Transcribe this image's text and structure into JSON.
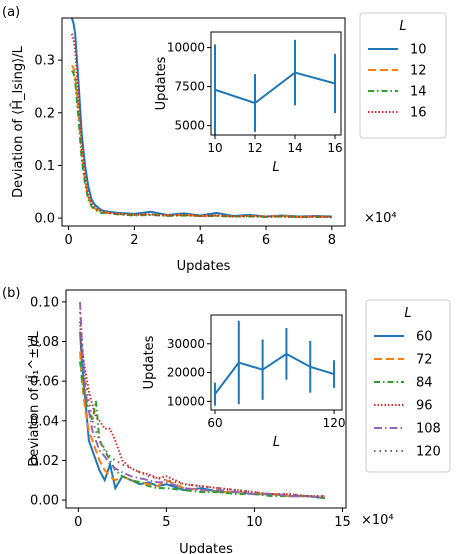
{
  "chart_data": [
    {
      "type": "line",
      "panel_label": "(a)",
      "xlabel": "Updates",
      "ylabel": "Deviation of ⟨Ĥ_Ising⟩/L",
      "x_multiplier": "×10⁴",
      "xlim": [
        -0.2,
        8.4
      ],
      "ylim": [
        -0.015,
        0.38
      ],
      "xticks": [
        0,
        2,
        4,
        6,
        8
      ],
      "yticks": [
        0.0,
        0.1,
        0.2,
        0.3
      ],
      "legend": {
        "title": "L",
        "placement": "outside-right"
      },
      "series": [
        {
          "name": "10",
          "color": "#1f77b4",
          "dash": "solid",
          "x": [
            0.1,
            0.15,
            0.2,
            0.3,
            0.4,
            0.5,
            0.6,
            0.7,
            0.8,
            1.0,
            1.2,
            1.5,
            2.0,
            2.5,
            3.0,
            3.5,
            4.0,
            4.5,
            5.0,
            5.5,
            6.0,
            6.5,
            7.0,
            7.5,
            8.0
          ],
          "y": [
            0.38,
            0.37,
            0.35,
            0.26,
            0.16,
            0.1,
            0.06,
            0.035,
            0.025,
            0.015,
            0.012,
            0.01,
            0.008,
            0.012,
            0.006,
            0.009,
            0.005,
            0.01,
            0.004,
            0.006,
            0.003,
            0.005,
            0.003,
            0.004,
            0.003
          ]
        },
        {
          "name": "12",
          "color": "#ff7f0e",
          "dash": "8,4",
          "x": [
            0.1,
            0.15,
            0.2,
            0.3,
            0.4,
            0.5,
            0.6,
            0.7,
            0.8,
            1.0,
            1.2,
            1.5,
            2.0,
            2.5,
            3.0,
            3.5,
            4.0,
            4.5,
            5.0,
            5.5,
            6.0,
            6.5,
            7.0,
            7.5,
            8.0
          ],
          "y": [
            0.29,
            0.285,
            0.27,
            0.2,
            0.12,
            0.07,
            0.04,
            0.025,
            0.018,
            0.012,
            0.01,
            0.008,
            0.006,
            0.007,
            0.005,
            0.006,
            0.004,
            0.005,
            0.003,
            0.004,
            0.003,
            0.004,
            0.002,
            0.003,
            0.002
          ]
        },
        {
          "name": "14",
          "color": "#2ca02c",
          "dash": "6,3,1.5,3",
          "x": [
            0.1,
            0.15,
            0.2,
            0.3,
            0.4,
            0.5,
            0.6,
            0.7,
            0.8,
            1.0,
            1.2,
            1.5,
            2.0,
            2.5,
            3.0,
            3.5,
            4.0,
            4.5,
            5.0,
            5.5,
            6.0,
            6.5,
            7.0,
            7.5,
            8.0
          ],
          "y": [
            0.28,
            0.275,
            0.26,
            0.19,
            0.11,
            0.065,
            0.035,
            0.022,
            0.015,
            0.01,
            0.009,
            0.007,
            0.005,
            0.006,
            0.004,
            0.005,
            0.004,
            0.004,
            0.003,
            0.003,
            0.002,
            0.003,
            0.002,
            0.002,
            0.002
          ]
        },
        {
          "name": "16",
          "color": "#d62728",
          "dash": "1.5,2",
          "x": [
            0.1,
            0.15,
            0.2,
            0.3,
            0.4,
            0.5,
            0.6,
            0.7,
            0.8,
            1.0,
            1.2,
            1.5,
            2.0,
            2.5,
            3.0,
            3.5,
            4.0,
            4.5,
            5.0,
            5.5,
            6.0,
            6.5,
            7.0,
            7.5,
            8.0
          ],
          "y": [
            0.35,
            0.34,
            0.32,
            0.23,
            0.14,
            0.08,
            0.045,
            0.028,
            0.02,
            0.013,
            0.01,
            0.008,
            0.006,
            0.007,
            0.005,
            0.006,
            0.004,
            0.005,
            0.003,
            0.004,
            0.003,
            0.003,
            0.002,
            0.003,
            0.002
          ]
        }
      ],
      "inset": {
        "type": "line-errorbar",
        "xlabel": "L",
        "ylabel": "Updates",
        "xlim": [
          9.8,
          16.3
        ],
        "ylim": [
          4400,
          11000
        ],
        "xticks": [
          10,
          12,
          14,
          16
        ],
        "yticks": [
          5000,
          7500,
          10000
        ],
        "color": "#1f77b4",
        "x": [
          10,
          12,
          14,
          16
        ],
        "y": [
          7300,
          6450,
          8400,
          7700
        ],
        "err": [
          2900,
          1850,
          2100,
          1900
        ]
      }
    },
    {
      "type": "line",
      "panel_label": "(b)",
      "xlabel": "Updates",
      "ylabel": "Deviation of ⟨Î₁^±⟩/L",
      "x_multiplier": "×10⁴",
      "xlim": [
        -0.7,
        15.2
      ],
      "ylim": [
        -0.004,
        0.106
      ],
      "xticks": [
        0,
        5,
        10,
        15
      ],
      "yticks": [
        0.0,
        0.02,
        0.04,
        0.06,
        0.08,
        0.1
      ],
      "legend": {
        "title": "L",
        "placement": "outside-right"
      },
      "series": [
        {
          "name": "60",
          "color": "#1f77b4",
          "dash": "solid",
          "x": [
            0.1,
            0.2,
            0.4,
            0.6,
            0.8,
            1.0,
            1.2,
            1.5,
            1.8,
            2.1,
            2.5,
            3.0,
            3.5,
            4.0,
            4.5,
            5.0,
            6.0,
            7.0,
            8.0,
            9.0,
            10.0,
            11.0,
            12.0,
            13.0,
            14.0
          ],
          "y": [
            0.085,
            0.07,
            0.05,
            0.03,
            0.025,
            0.02,
            0.015,
            0.01,
            0.018,
            0.006,
            0.012,
            0.01,
            0.008,
            0.009,
            0.007,
            0.008,
            0.005,
            0.006,
            0.004,
            0.004,
            0.003,
            0.003,
            0.002,
            0.002,
            0.001
          ]
        },
        {
          "name": "72",
          "color": "#ff7f0e",
          "dash": "8,4",
          "x": [
            0.1,
            0.2,
            0.4,
            0.6,
            0.8,
            1.0,
            1.2,
            1.5,
            1.8,
            2.1,
            2.5,
            3.0,
            3.5,
            4.0,
            4.5,
            5.0,
            6.0,
            7.0,
            8.0,
            9.0,
            10.0,
            11.0,
            12.0,
            13.0,
            14.0
          ],
          "y": [
            0.075,
            0.06,
            0.045,
            0.035,
            0.03,
            0.025,
            0.02,
            0.015,
            0.012,
            0.01,
            0.012,
            0.01,
            0.009,
            0.008,
            0.007,
            0.01,
            0.006,
            0.005,
            0.004,
            0.004,
            0.003,
            0.003,
            0.002,
            0.002,
            0.001
          ]
        },
        {
          "name": "84",
          "color": "#2ca02c",
          "dash": "6,3,1.5,3",
          "x": [
            0.1,
            0.2,
            0.4,
            0.6,
            0.8,
            1.0,
            1.2,
            1.5,
            1.8,
            2.1,
            2.5,
            3.0,
            3.5,
            4.0,
            4.5,
            5.0,
            6.0,
            7.0,
            8.0,
            9.0,
            10.0,
            11.0,
            12.0,
            13.0,
            14.0
          ],
          "y": [
            0.07,
            0.062,
            0.05,
            0.045,
            0.04,
            0.05,
            0.03,
            0.025,
            0.02,
            0.015,
            0.012,
            0.01,
            0.009,
            0.007,
            0.006,
            0.006,
            0.005,
            0.004,
            0.004,
            0.003,
            0.003,
            0.002,
            0.002,
            0.002,
            0.001
          ]
        },
        {
          "name": "96",
          "color": "#d62728",
          "dash": "1.5,2",
          "x": [
            0.1,
            0.2,
            0.4,
            0.6,
            0.8,
            1.0,
            1.2,
            1.5,
            1.8,
            2.1,
            2.5,
            3.0,
            3.5,
            4.0,
            4.5,
            5.0,
            6.0,
            7.0,
            8.0,
            9.0,
            10.0,
            11.0,
            12.0,
            13.0,
            14.0
          ],
          "y": [
            0.09,
            0.075,
            0.065,
            0.055,
            0.048,
            0.042,
            0.04,
            0.036,
            0.036,
            0.03,
            0.02,
            0.016,
            0.014,
            0.013,
            0.011,
            0.012,
            0.008,
            0.007,
            0.006,
            0.005,
            0.004,
            0.003,
            0.003,
            0.002,
            0.002
          ]
        },
        {
          "name": "108",
          "color": "#9467bd",
          "dash": "8,3,1.5,3",
          "x": [
            0.1,
            0.2,
            0.4,
            0.6,
            0.8,
            1.0,
            1.2,
            1.5,
            1.8,
            2.1,
            2.5,
            3.0,
            3.5,
            4.0,
            4.5,
            5.0,
            6.0,
            7.0,
            8.0,
            9.0,
            10.0,
            11.0,
            12.0,
            13.0,
            14.0
          ],
          "y": [
            0.1,
            0.08,
            0.055,
            0.045,
            0.035,
            0.03,
            0.025,
            0.022,
            0.018,
            0.016,
            0.014,
            0.012,
            0.011,
            0.01,
            0.009,
            0.009,
            0.006,
            0.005,
            0.005,
            0.004,
            0.003,
            0.003,
            0.002,
            0.002,
            0.001
          ]
        },
        {
          "name": "120",
          "color": "#8c564b",
          "dash": "1.5,4",
          "x": [
            0.1,
            0.2,
            0.4,
            0.6,
            0.8,
            1.0,
            1.2,
            1.5,
            1.8,
            2.1,
            2.5,
            3.0,
            3.5,
            4.0,
            4.5,
            5.0,
            6.0,
            7.0,
            8.0,
            9.0,
            10.0,
            11.0,
            12.0,
            13.0,
            14.0
          ],
          "y": [
            0.095,
            0.08,
            0.06,
            0.05,
            0.04,
            0.035,
            0.03,
            0.026,
            0.022,
            0.02,
            0.018,
            0.016,
            0.014,
            0.012,
            0.011,
            0.01,
            0.008,
            0.007,
            0.006,
            0.005,
            0.004,
            0.003,
            0.003,
            0.002,
            0.002
          ]
        }
      ],
      "inset": {
        "type": "line-errorbar",
        "xlabel": "L",
        "ylabel": "Updates",
        "xlim": [
          58,
          124
        ],
        "ylim": [
          7000,
          40000
        ],
        "xticks": [
          60,
          120
        ],
        "yticks": [
          10000,
          20000,
          30000
        ],
        "color": "#1f77b4",
        "x": [
          60,
          72,
          84,
          96,
          108,
          120
        ],
        "y": [
          12500,
          23500,
          21000,
          26500,
          22000,
          19500
        ],
        "err": [
          4000,
          14500,
          10500,
          9000,
          9000,
          4800
        ]
      }
    }
  ]
}
